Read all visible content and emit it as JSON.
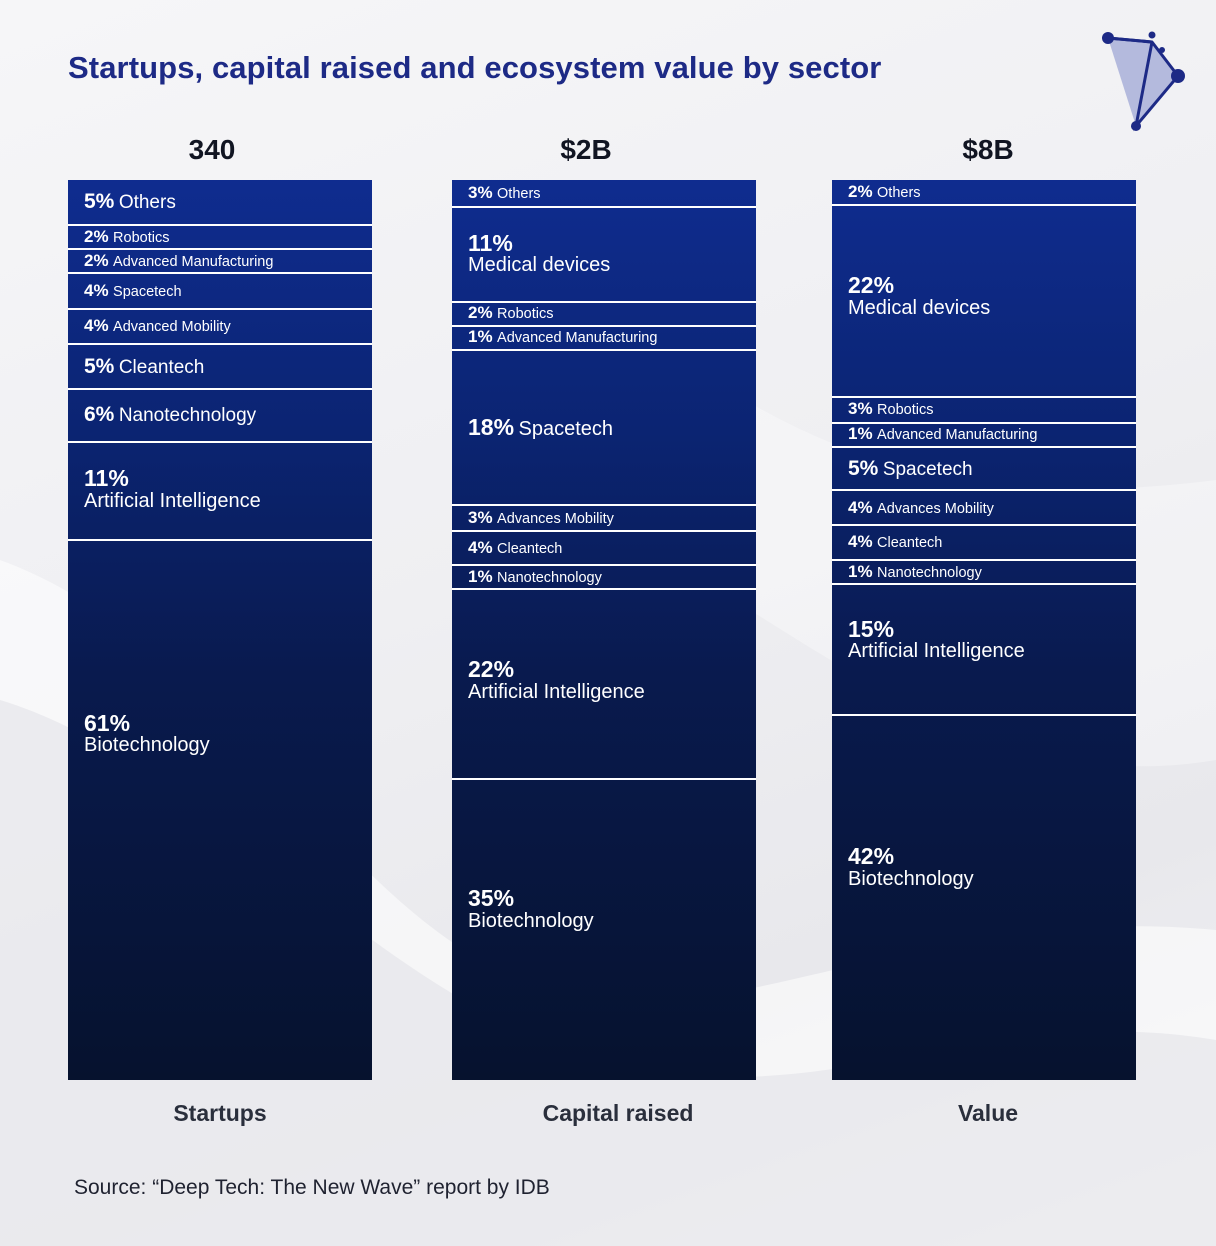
{
  "title": "Startups, capital raised and ecosystem value by sector",
  "source": "Source: “Deep Tech: The New Wave” report by IDB",
  "colors": {
    "title": "#1d2a86",
    "bar_top": "#0f2c8f",
    "bar_bottom": "#06122e",
    "divider": "#ffffff"
  },
  "chart_data": {
    "type": "stacked-bar-100",
    "title": "Startups, capital raised and ecosystem value by sector",
    "unit": "%",
    "columns": [
      {
        "label": "Startups",
        "total": "340",
        "segments": [
          {
            "pct": "5%",
            "name": "Others",
            "value": 5
          },
          {
            "pct": "2%",
            "name": "Robotics",
            "value": 2
          },
          {
            "pct": "2%",
            "name": "Advanced Manufacturing",
            "value": 2
          },
          {
            "pct": "4%",
            "name": "Spacetech",
            "value": 4
          },
          {
            "pct": "4%",
            "name": "Advanced Mobility",
            "value": 4
          },
          {
            "pct": "5%",
            "name": "Cleantech",
            "value": 5
          },
          {
            "pct": "6%",
            "name": "Nanotechnology",
            "value": 6
          },
          {
            "pct": "11%",
            "name": "Artificial Intelligence",
            "value": 11
          },
          {
            "pct": "61%",
            "name": "Biotechnology",
            "value": 61
          }
        ]
      },
      {
        "label": "Capital raised",
        "total": "$2B",
        "segments": [
          {
            "pct": "3%",
            "name": "Others",
            "value": 3
          },
          {
            "pct": "11%",
            "name": "Medical devices",
            "value": 11
          },
          {
            "pct": "2%",
            "name": "Robotics",
            "value": 2
          },
          {
            "pct": "1%",
            "name": "Advanced Manufacturing",
            "value": 1
          },
          {
            "pct": "18%",
            "name": "Spacetech",
            "value": 18
          },
          {
            "pct": "3%",
            "name": "Advances Mobility",
            "value": 3
          },
          {
            "pct": "4%",
            "name": "Cleantech",
            "value": 4
          },
          {
            "pct": "1%",
            "name": "Nanotechnology",
            "value": 1
          },
          {
            "pct": "22%",
            "name": "Artificial Intelligence",
            "value": 22
          },
          {
            "pct": "35%",
            "name": "Biotechnology",
            "value": 35
          }
        ]
      },
      {
        "label": "Value",
        "total": "$8B",
        "segments": [
          {
            "pct": "2%",
            "name": "Others",
            "value": 2
          },
          {
            "pct": "22%",
            "name": "Medical devices",
            "value": 22
          },
          {
            "pct": "3%",
            "name": "Robotics",
            "value": 3
          },
          {
            "pct": "1%",
            "name": "Advanced Manufacturing",
            "value": 1
          },
          {
            "pct": "5%",
            "name": "Spacetech",
            "value": 5
          },
          {
            "pct": "4%",
            "name": "Advances Mobility",
            "value": 4
          },
          {
            "pct": "4%",
            "name": "Cleantech",
            "value": 4
          },
          {
            "pct": "1%",
            "name": "Nanotechnology",
            "value": 1
          },
          {
            "pct": "15%",
            "name": "Artificial Intelligence",
            "value": 15
          },
          {
            "pct": "42%",
            "name": "Biotechnology",
            "value": 42
          }
        ]
      }
    ]
  }
}
